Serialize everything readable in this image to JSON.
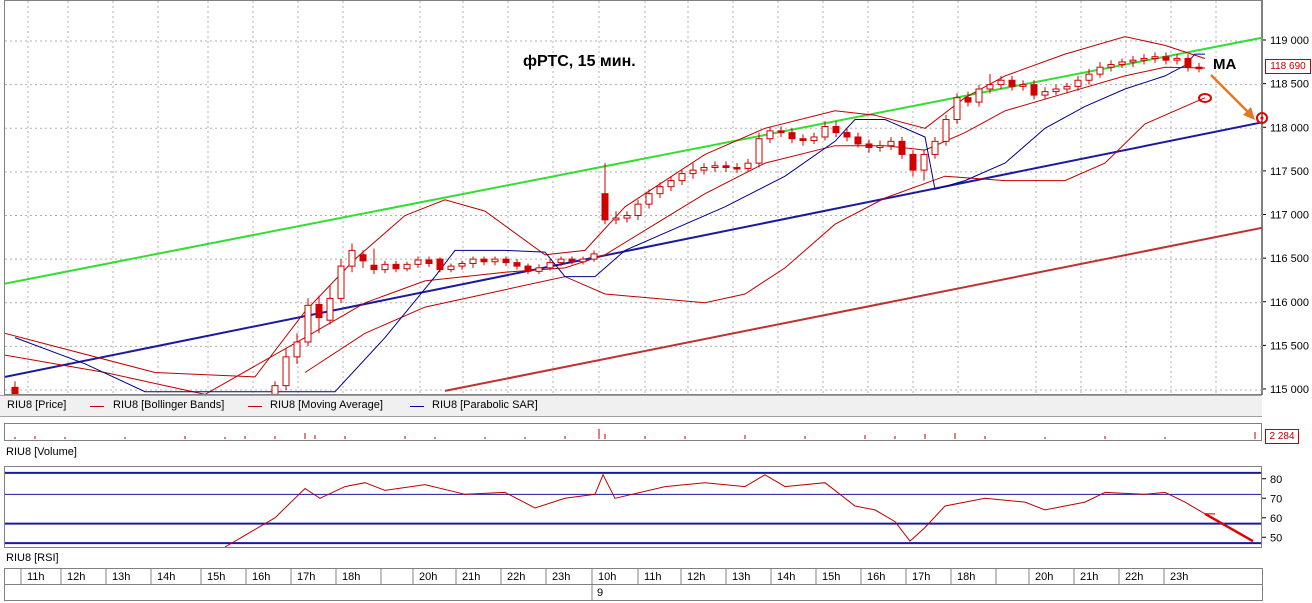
{
  "chart_data": {
    "type": "line",
    "title": "фРТС, 15 мин.",
    "annotation_ma": "MA",
    "price_label": "118 690",
    "y_ticks": [
      "119 000",
      "118 500",
      "118 000",
      "117 500",
      "117 000",
      "116 500",
      "116 000",
      "115 500",
      "115 000"
    ],
    "y_values": [
      119000,
      118500,
      118000,
      117500,
      117000,
      116500,
      116000,
      115500,
      115000
    ],
    "ylim": [
      115000,
      119200
    ],
    "legend": [
      {
        "name": "RIU8 [Price]",
        "color": "#000000"
      },
      {
        "name": "RIU8 [Bollinger Bands]",
        "color": "#c00000"
      },
      {
        "name": "RIU8 [Moving Average]",
        "color": "#c00000"
      },
      {
        "name": "RIU8 [Parabolic SAR]",
        "color": "#00008b"
      }
    ],
    "volume_label": "RIU8 [Volume]",
    "volume_value": "2 284",
    "rsi_label": "RIU8 [RSI]",
    "rsi_ticks": [
      "80",
      "70",
      "60",
      "50"
    ],
    "rsi_values": [
      80,
      70,
      60,
      50
    ],
    "rsi_ylim": [
      45,
      85
    ],
    "time_labels": [
      "11h",
      "12h",
      "13h",
      "14h",
      "15h",
      "16h",
      "17h",
      "18h",
      "",
      "20h",
      "21h",
      "22h",
      "23h",
      "10h",
      "11h",
      "12h",
      "13h",
      "14h",
      "15h",
      "16h",
      "17h",
      "18h",
      "",
      "20h",
      "21h",
      "22h",
      "23h"
    ],
    "day_label": "9",
    "trend_lines": {
      "green": [
        [
          0,
          116220
        ],
        [
          1312,
          119160
        ]
      ],
      "blue": [
        [
          0,
          115150
        ],
        [
          1262,
          118080
        ]
      ],
      "red": [
        [
          440,
          114990
        ],
        [
          1262,
          116870
        ]
      ]
    },
    "candles": [
      {
        "x": 10,
        "o": 115030,
        "c": 114950,
        "h": 115100,
        "l": 114900
      },
      {
        "x": 270,
        "o": 114950,
        "c": 115050,
        "h": 115100,
        "l": 114900
      },
      {
        "x": 281,
        "o": 115050,
        "c": 115380,
        "h": 115480,
        "l": 115000
      },
      {
        "x": 292,
        "o": 115380,
        "c": 115550,
        "h": 115650,
        "l": 115300
      },
      {
        "x": 303,
        "o": 115550,
        "c": 115970,
        "h": 116050,
        "l": 115500
      },
      {
        "x": 314,
        "o": 115980,
        "c": 115830,
        "h": 116080,
        "l": 115650
      },
      {
        "x": 325,
        "o": 115800,
        "c": 116050,
        "h": 116200,
        "l": 115750
      },
      {
        "x": 336,
        "o": 116050,
        "c": 116420,
        "h": 116500,
        "l": 116000
      },
      {
        "x": 347,
        "o": 116420,
        "c": 116600,
        "h": 116680,
        "l": 116350
      },
      {
        "x": 358,
        "o": 116550,
        "c": 116480,
        "h": 116600,
        "l": 116400
      },
      {
        "x": 369,
        "o": 116430,
        "c": 116380,
        "h": 116620,
        "l": 116330
      },
      {
        "x": 380,
        "o": 116380,
        "c": 116440,
        "h": 116480,
        "l": 116340
      },
      {
        "x": 391,
        "o": 116440,
        "c": 116390,
        "h": 116480,
        "l": 116350
      },
      {
        "x": 402,
        "o": 116390,
        "c": 116440,
        "h": 116470,
        "l": 116360
      },
      {
        "x": 413,
        "o": 116440,
        "c": 116490,
        "h": 116530,
        "l": 116400
      },
      {
        "x": 424,
        "o": 116490,
        "c": 116450,
        "h": 116530,
        "l": 116410
      },
      {
        "x": 435,
        "o": 116500,
        "c": 116380,
        "h": 116520,
        "l": 116350
      },
      {
        "x": 446,
        "o": 116380,
        "c": 116420,
        "h": 116450,
        "l": 116350
      },
      {
        "x": 457,
        "o": 116420,
        "c": 116450,
        "h": 116480,
        "l": 116380
      },
      {
        "x": 468,
        "o": 116450,
        "c": 116500,
        "h": 116530,
        "l": 116400
      },
      {
        "x": 479,
        "o": 116500,
        "c": 116470,
        "h": 116530,
        "l": 116430
      },
      {
        "x": 490,
        "o": 116470,
        "c": 116500,
        "h": 116530,
        "l": 116430
      },
      {
        "x": 501,
        "o": 116500,
        "c": 116460,
        "h": 116530,
        "l": 116420
      },
      {
        "x": 512,
        "o": 116460,
        "c": 116420,
        "h": 116500,
        "l": 116380
      },
      {
        "x": 523,
        "o": 116420,
        "c": 116360,
        "h": 116450,
        "l": 116330
      },
      {
        "x": 534,
        "o": 116360,
        "c": 116400,
        "h": 116440,
        "l": 116330
      },
      {
        "x": 545,
        "o": 116400,
        "c": 116460,
        "h": 116500,
        "l": 116370
      },
      {
        "x": 556,
        "o": 116460,
        "c": 116500,
        "h": 116530,
        "l": 116420
      },
      {
        "x": 567,
        "o": 116500,
        "c": 116470,
        "h": 116530,
        "l": 116440
      },
      {
        "x": 578,
        "o": 116470,
        "c": 116500,
        "h": 116530,
        "l": 116440
      },
      {
        "x": 589,
        "o": 116500,
        "c": 116560,
        "h": 116600,
        "l": 116470
      },
      {
        "x": 600,
        "o": 117250,
        "c": 116950,
        "h": 117600,
        "l": 116900
      },
      {
        "x": 611,
        "o": 116950,
        "c": 116970,
        "h": 117050,
        "l": 116900
      },
      {
        "x": 622,
        "o": 116970,
        "c": 117000,
        "h": 117050,
        "l": 116920
      },
      {
        "x": 633,
        "o": 117000,
        "c": 117130,
        "h": 117180,
        "l": 116950
      },
      {
        "x": 644,
        "o": 117130,
        "c": 117250,
        "h": 117300,
        "l": 117080
      },
      {
        "x": 655,
        "o": 117250,
        "c": 117330,
        "h": 117380,
        "l": 117200
      },
      {
        "x": 666,
        "o": 117330,
        "c": 117400,
        "h": 117450,
        "l": 117280
      },
      {
        "x": 677,
        "o": 117400,
        "c": 117480,
        "h": 117520,
        "l": 117350
      },
      {
        "x": 688,
        "o": 117480,
        "c": 117520,
        "h": 117600,
        "l": 117420
      },
      {
        "x": 699,
        "o": 117520,
        "c": 117550,
        "h": 117600,
        "l": 117470
      },
      {
        "x": 710,
        "o": 117550,
        "c": 117570,
        "h": 117620,
        "l": 117500
      },
      {
        "x": 721,
        "o": 117570,
        "c": 117550,
        "h": 117620,
        "l": 117500
      },
      {
        "x": 732,
        "o": 117550,
        "c": 117540,
        "h": 117600,
        "l": 117490
      },
      {
        "x": 743,
        "o": 117540,
        "c": 117600,
        "h": 117650,
        "l": 117500
      },
      {
        "x": 754,
        "o": 117600,
        "c": 117880,
        "h": 117950,
        "l": 117550
      },
      {
        "x": 765,
        "o": 117880,
        "c": 117970,
        "h": 118020,
        "l": 117830
      },
      {
        "x": 776,
        "o": 117970,
        "c": 117950,
        "h": 118020,
        "l": 117900
      },
      {
        "x": 787,
        "o": 117950,
        "c": 117880,
        "h": 118000,
        "l": 117830
      },
      {
        "x": 798,
        "o": 117880,
        "c": 117860,
        "h": 117930,
        "l": 117800
      },
      {
        "x": 809,
        "o": 117860,
        "c": 117900,
        "h": 117950,
        "l": 117820
      },
      {
        "x": 820,
        "o": 117900,
        "c": 118020,
        "h": 118080,
        "l": 117860
      },
      {
        "x": 831,
        "o": 118020,
        "c": 117950,
        "h": 118080,
        "l": 117900
      },
      {
        "x": 842,
        "o": 117950,
        "c": 117900,
        "h": 118000,
        "l": 117850
      },
      {
        "x": 853,
        "o": 117900,
        "c": 117820,
        "h": 117950,
        "l": 117780
      },
      {
        "x": 864,
        "o": 117820,
        "c": 117780,
        "h": 117870,
        "l": 117720
      },
      {
        "x": 875,
        "o": 117780,
        "c": 117800,
        "h": 117860,
        "l": 117730
      },
      {
        "x": 886,
        "o": 117800,
        "c": 117850,
        "h": 117900,
        "l": 117750
      },
      {
        "x": 897,
        "o": 117850,
        "c": 117700,
        "h": 117900,
        "l": 117650
      },
      {
        "x": 908,
        "o": 117700,
        "c": 117520,
        "h": 117750,
        "l": 117450
      },
      {
        "x": 919,
        "o": 117520,
        "c": 117700,
        "h": 117760,
        "l": 117400
      },
      {
        "x": 930,
        "o": 117700,
        "c": 117850,
        "h": 117900,
        "l": 117650
      },
      {
        "x": 941,
        "o": 117850,
        "c": 118100,
        "h": 118150,
        "l": 117800
      },
      {
        "x": 952,
        "o": 118100,
        "c": 118350,
        "h": 118400,
        "l": 118050
      },
      {
        "x": 963,
        "o": 118350,
        "c": 118300,
        "h": 118420,
        "l": 118250
      },
      {
        "x": 974,
        "o": 118300,
        "c": 118450,
        "h": 118500,
        "l": 118250
      },
      {
        "x": 985,
        "o": 118450,
        "c": 118500,
        "h": 118620,
        "l": 118400
      },
      {
        "x": 996,
        "o": 118500,
        "c": 118550,
        "h": 118600,
        "l": 118450
      },
      {
        "x": 1007,
        "o": 118550,
        "c": 118480,
        "h": 118600,
        "l": 118430
      },
      {
        "x": 1018,
        "o": 118480,
        "c": 118500,
        "h": 118550,
        "l": 118430
      },
      {
        "x": 1029,
        "o": 118500,
        "c": 118380,
        "h": 118550,
        "l": 118330
      },
      {
        "x": 1040,
        "o": 118380,
        "c": 118420,
        "h": 118470,
        "l": 118330
      },
      {
        "x": 1051,
        "o": 118420,
        "c": 118450,
        "h": 118500,
        "l": 118380
      },
      {
        "x": 1062,
        "o": 118450,
        "c": 118480,
        "h": 118520,
        "l": 118400
      },
      {
        "x": 1073,
        "o": 118480,
        "c": 118550,
        "h": 118600,
        "l": 118430
      },
      {
        "x": 1084,
        "o": 118550,
        "c": 118620,
        "h": 118680,
        "l": 118500
      },
      {
        "x": 1095,
        "o": 118620,
        "c": 118700,
        "h": 118760,
        "l": 118580
      },
      {
        "x": 1106,
        "o": 118700,
        "c": 118730,
        "h": 118780,
        "l": 118650
      },
      {
        "x": 1117,
        "o": 118730,
        "c": 118760,
        "h": 118800,
        "l": 118690
      },
      {
        "x": 1128,
        "o": 118760,
        "c": 118780,
        "h": 118830,
        "l": 118700
      },
      {
        "x": 1139,
        "o": 118780,
        "c": 118800,
        "h": 118850,
        "l": 118730
      },
      {
        "x": 1150,
        "o": 118800,
        "c": 118820,
        "h": 118870,
        "l": 118750
      },
      {
        "x": 1161,
        "o": 118820,
        "c": 118780,
        "h": 118870,
        "l": 118730
      },
      {
        "x": 1172,
        "o": 118780,
        "c": 118800,
        "h": 118850,
        "l": 118730
      },
      {
        "x": 1183,
        "o": 118800,
        "c": 118700,
        "h": 118850,
        "l": 118650
      },
      {
        "x": 1194,
        "o": 118700,
        "c": 118690,
        "h": 118750,
        "l": 118640
      }
    ],
    "ma_line": [
      [
        0,
        115400
      ],
      [
        100,
        115200
      ],
      [
        200,
        114950
      ],
      [
        300,
        115600
      ],
      [
        360,
        116000
      ],
      [
        420,
        116250
      ],
      [
        500,
        116350
      ],
      [
        560,
        116400
      ],
      [
        600,
        116550
      ],
      [
        650,
        116900
      ],
      [
        700,
        117250
      ],
      [
        760,
        117600
      ],
      [
        830,
        117800
      ],
      [
        880,
        117800
      ],
      [
        920,
        117750
      ],
      [
        960,
        117950
      ],
      [
        1000,
        118200
      ],
      [
        1060,
        118400
      ],
      [
        1120,
        118600
      ],
      [
        1160,
        118700
      ],
      [
        1200,
        118690
      ]
    ],
    "bb_upper": [
      [
        0,
        115650
      ],
      [
        150,
        115200
      ],
      [
        250,
        115150
      ],
      [
        300,
        115900
      ],
      [
        350,
        116500
      ],
      [
        400,
        117000
      ],
      [
        440,
        117180
      ],
      [
        480,
        117050
      ],
      [
        540,
        116550
      ],
      [
        580,
        116600
      ],
      [
        620,
        117100
      ],
      [
        700,
        117700
      ],
      [
        760,
        118000
      ],
      [
        830,
        118200
      ],
      [
        870,
        118150
      ],
      [
        920,
        118000
      ],
      [
        960,
        118350
      ],
      [
        1000,
        118600
      ],
      [
        1060,
        118850
      ],
      [
        1120,
        119050
      ],
      [
        1160,
        118950
      ],
      [
        1200,
        118800
      ]
    ],
    "bb_lower": [
      [
        300,
        115200
      ],
      [
        360,
        115650
      ],
      [
        420,
        115950
      ],
      [
        500,
        116150
      ],
      [
        560,
        116300
      ],
      [
        600,
        116100
      ],
      [
        650,
        116050
      ],
      [
        700,
        116000
      ],
      [
        740,
        116100
      ],
      [
        780,
        116400
      ],
      [
        830,
        116900
      ],
      [
        880,
        117200
      ],
      [
        940,
        117450
      ],
      [
        1000,
        117400
      ],
      [
        1060,
        117400
      ],
      [
        1100,
        117600
      ],
      [
        1140,
        118050
      ],
      [
        1180,
        118250
      ],
      [
        1200,
        118350
      ]
    ],
    "sar_line": [
      [
        10,
        115600
      ],
      [
        80,
        115300
      ],
      [
        140,
        114980
      ],
      [
        330,
        114980
      ],
      [
        380,
        115600
      ],
      [
        430,
        116300
      ],
      [
        450,
        116600
      ],
      [
        500,
        116600
      ],
      [
        540,
        116580
      ],
      [
        560,
        116300
      ],
      [
        590,
        116300
      ],
      [
        620,
        116600
      ],
      [
        660,
        116800
      ],
      [
        720,
        117100
      ],
      [
        780,
        117450
      ],
      [
        830,
        117850
      ],
      [
        850,
        118100
      ],
      [
        880,
        118100
      ],
      [
        920,
        117900
      ],
      [
        930,
        117300
      ],
      [
        960,
        117400
      ],
      [
        1000,
        117600
      ],
      [
        1040,
        118000
      ],
      [
        1080,
        118250
      ],
      [
        1120,
        118450
      ],
      [
        1160,
        118600
      ],
      [
        1180,
        118720
      ],
      [
        1190,
        118850
      ],
      [
        1200,
        118850
      ]
    ],
    "rsi_line": [
      [
        220,
        45
      ],
      [
        240,
        51
      ],
      [
        270,
        60
      ],
      [
        300,
        75
      ],
      [
        315,
        70
      ],
      [
        340,
        76
      ],
      [
        360,
        78
      ],
      [
        380,
        74
      ],
      [
        420,
        77
      ],
      [
        460,
        72
      ],
      [
        500,
        73
      ],
      [
        530,
        65
      ],
      [
        560,
        70
      ],
      [
        590,
        72
      ],
      [
        598,
        82
      ],
      [
        610,
        70
      ],
      [
        660,
        76
      ],
      [
        700,
        78
      ],
      [
        740,
        76
      ],
      [
        760,
        82
      ],
      [
        780,
        76
      ],
      [
        820,
        78
      ],
      [
        850,
        66
      ],
      [
        870,
        64
      ],
      [
        890,
        58
      ],
      [
        905,
        48
      ],
      [
        920,
        55
      ],
      [
        940,
        66
      ],
      [
        980,
        70
      ],
      [
        1020,
        68
      ],
      [
        1040,
        64
      ],
      [
        1080,
        68
      ],
      [
        1100,
        73
      ],
      [
        1140,
        72
      ],
      [
        1160,
        73
      ],
      [
        1180,
        68
      ],
      [
        1200,
        62
      ],
      [
        1210,
        62
      ]
    ],
    "volume_bars": [
      [
        10,
        2
      ],
      [
        30,
        3
      ],
      [
        60,
        2
      ],
      [
        120,
        2
      ],
      [
        180,
        3
      ],
      [
        220,
        2
      ],
      [
        240,
        3
      ],
      [
        270,
        3
      ],
      [
        300,
        6
      ],
      [
        310,
        4
      ],
      [
        340,
        3
      ],
      [
        400,
        3
      ],
      [
        430,
        2
      ],
      [
        480,
        2
      ],
      [
        520,
        2
      ],
      [
        560,
        3
      ],
      [
        594,
        10
      ],
      [
        600,
        5
      ],
      [
        640,
        3
      ],
      [
        680,
        3
      ],
      [
        740,
        4
      ],
      [
        800,
        3
      ],
      [
        860,
        4
      ],
      [
        890,
        3
      ],
      [
        920,
        5
      ],
      [
        950,
        6
      ],
      [
        980,
        3
      ],
      [
        1040,
        2
      ],
      [
        1100,
        3
      ],
      [
        1160,
        2
      ],
      [
        1250,
        7
      ]
    ]
  }
}
